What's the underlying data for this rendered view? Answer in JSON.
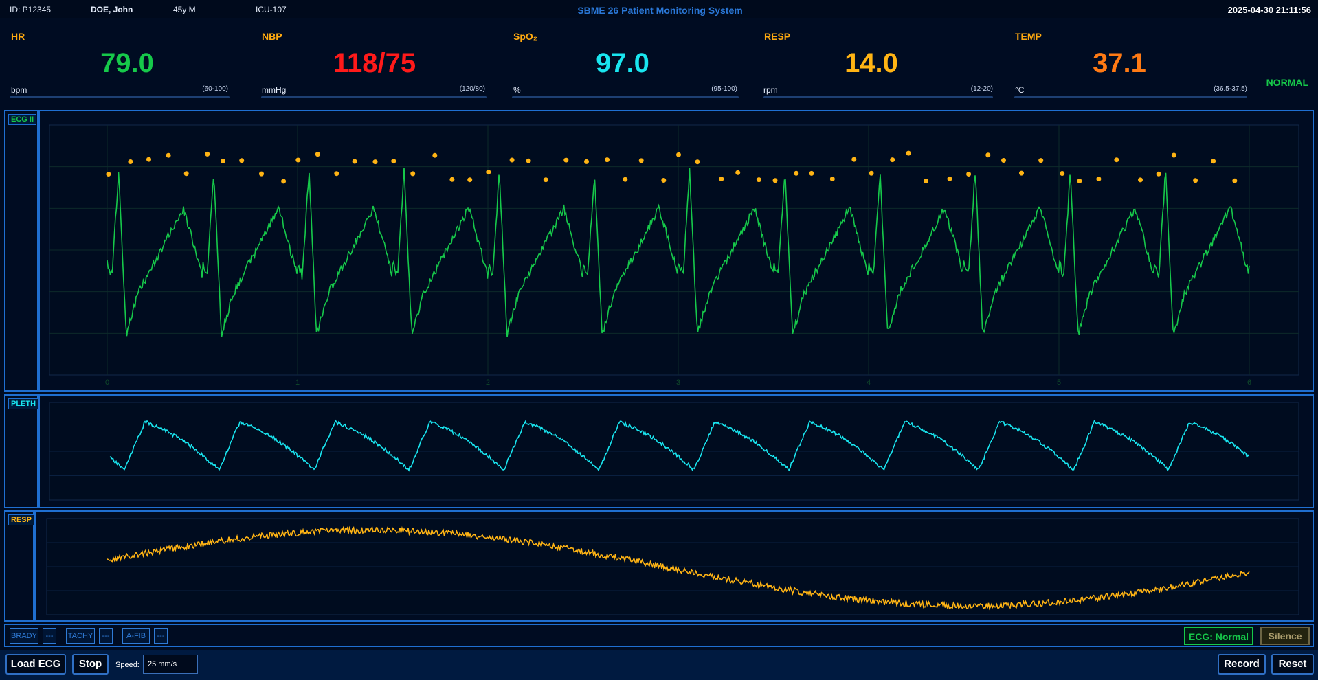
{
  "header": {
    "patient_id": "ID: P12345",
    "patient_name": "DOE, John",
    "age_sex": "45y M",
    "location": "ICU-107",
    "title": "SBME 26 Patient Monitoring System",
    "datetime": "2025-04-30  21:11:56"
  },
  "vitals": {
    "hr": {
      "label": "HR",
      "value": "79.0",
      "unit": "bpm",
      "range": "(60-100)",
      "color": "#16c94a"
    },
    "nbp": {
      "label": "NBP",
      "value": "118/75",
      "unit": "mmHg",
      "range": "(120/80)",
      "color": "#ff1a1a"
    },
    "spo2": {
      "label": "SpO₂",
      "value": "97.0",
      "unit": "%",
      "range": "(95-100)",
      "color": "#19e6f0"
    },
    "resp": {
      "label": "RESP",
      "value": "14.0",
      "unit": "rpm",
      "range": "(12-20)",
      "color": "#ffb414"
    },
    "temp": {
      "label": "TEMP",
      "value": "37.1",
      "unit": "°C",
      "range": "(36.5-37.5)",
      "color": "#ff7a14"
    },
    "status": "NORMAL"
  },
  "waveforms": {
    "ecg": {
      "label": "ECG II",
      "color": "#16c94a",
      "marker_color": "#ffb414",
      "x_ticks": [
        "0",
        "1",
        "2",
        "3",
        "4",
        "5",
        "6"
      ]
    },
    "pleth": {
      "label": "PLETH",
      "color": "#19e6f0"
    },
    "resp": {
      "label": "RESP",
      "color": "#ffb414"
    }
  },
  "alarms": {
    "brady": {
      "label": "BRADY",
      "value": "---"
    },
    "tachy": {
      "label": "TACHY",
      "value": "---"
    },
    "afib": {
      "label": "A-FIB",
      "value": "---"
    },
    "ecg_status": "ECG: Normal",
    "silence": "Silence"
  },
  "toolbar": {
    "load_ecg": "Load ECG",
    "stop": "Stop",
    "speed_label": "Speed:",
    "speed_value": "25 mm/s",
    "record": "Record",
    "reset": "Reset"
  }
}
